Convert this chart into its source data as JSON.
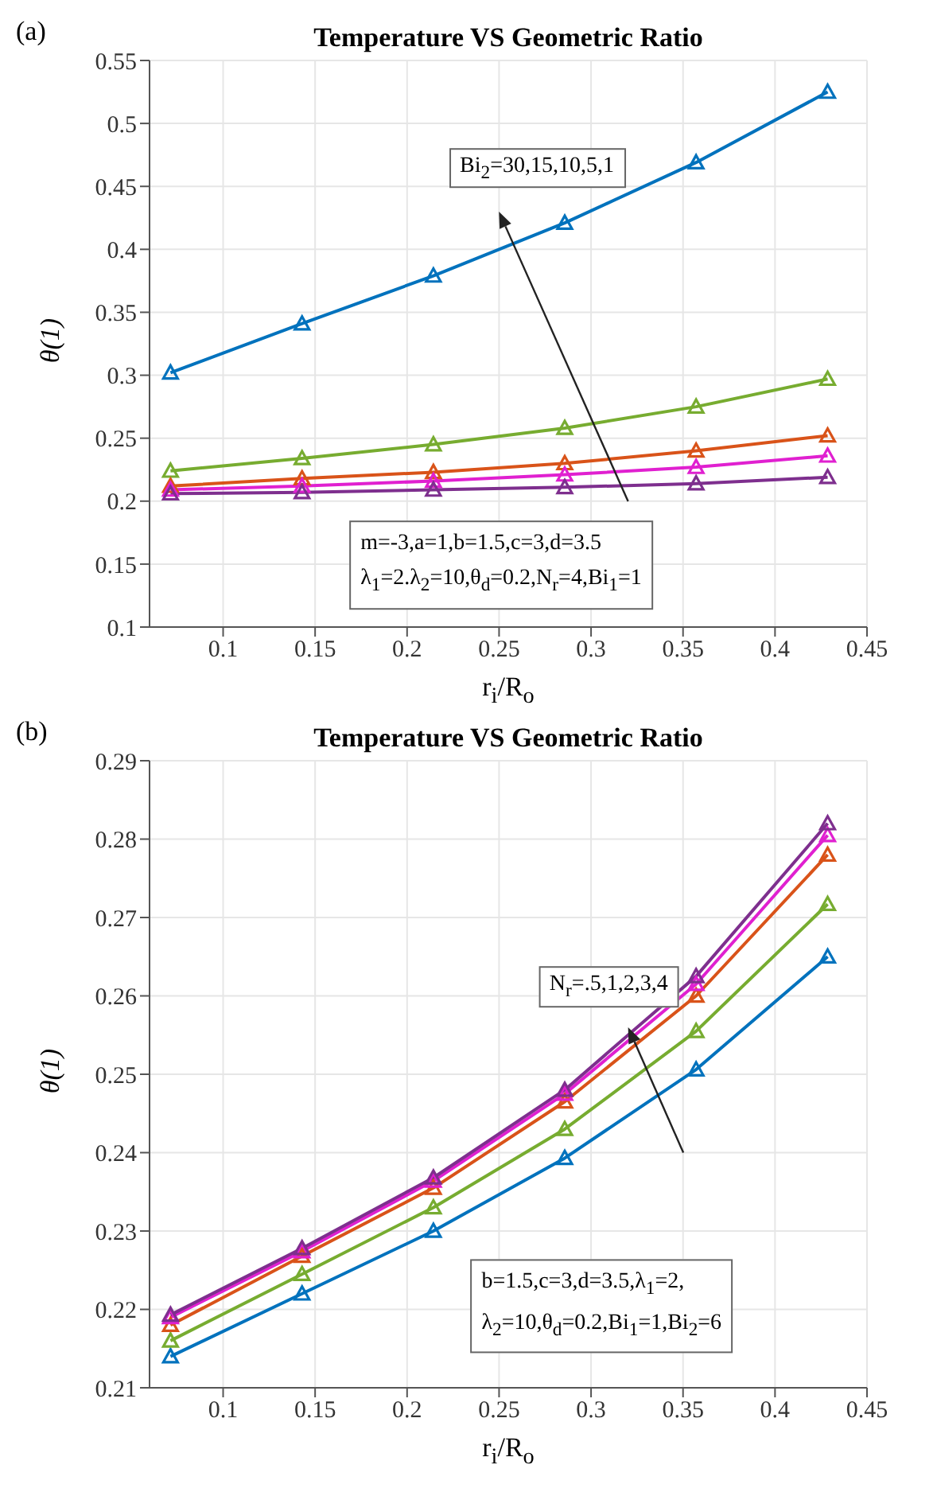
{
  "chart_data": [
    {
      "type": "line",
      "title": "Temperature VS Geometric Ratio",
      "xlabel": "r$_{i}$/R$_{o}$",
      "ylabel": "θ(1)",
      "annotations": [
        "(a)",
        "Bi$_{2}$=30,15,10,5,1",
        "m=-3,a=1,b=1.5,c=3,d=3.5",
        "λ$_{1}$=2.λ$_{2}$=10,θ$_{d}$=0.2,N$_{r}$=4,Bi$_{1}$=1"
      ],
      "x": [
        0.0714,
        0.1429,
        0.2143,
        0.2857,
        0.3571,
        0.4286
      ],
      "series": [
        {
          "color": "#0072bd",
          "values": [
            0.302,
            0.341,
            0.379,
            0.421,
            0.469,
            0.525
          ]
        },
        {
          "color": "#77ac30",
          "values": [
            0.224,
            0.234,
            0.245,
            0.258,
            0.275,
            0.297
          ]
        },
        {
          "color": "#d95319",
          "values": [
            0.212,
            0.218,
            0.223,
            0.23,
            0.24,
            0.252
          ]
        },
        {
          "color": "#e020d0",
          "values": [
            0.209,
            0.212,
            0.216,
            0.221,
            0.227,
            0.236
          ]
        },
        {
          "color": "#7e2f8e",
          "values": [
            0.206,
            0.207,
            0.209,
            0.211,
            0.214,
            0.219
          ]
        }
      ],
      "xlim": [
        0.06,
        0.45
      ],
      "xticks": [
        0.1,
        0.15,
        0.2,
        0.25,
        0.3,
        0.35,
        0.4,
        0.45
      ],
      "ylim": [
        0.1,
        0.55
      ],
      "yticks": [
        0.1,
        0.15,
        0.2,
        0.25,
        0.3,
        0.35,
        0.4,
        0.45,
        0.5,
        0.55
      ],
      "grid": true,
      "marker": "triangle",
      "line_style": "solid"
    },
    {
      "type": "line",
      "title": "Temperature VS Geometric Ratio",
      "xlabel": "r$_{i}$/R$_{o}$",
      "ylabel": "θ(1)",
      "annotations": [
        "(b)",
        "N$_{r}$=.5,1,2,3,4",
        "b=1.5,c=3,d=3.5,λ$_{1}$=2,",
        "λ$_{2}$=10,θ$_{d}$=0.2,Bi$_{1}$=1,Bi$_{2}$=6"
      ],
      "x": [
        0.0714,
        0.1429,
        0.2143,
        0.2857,
        0.3571,
        0.4286
      ],
      "series": [
        {
          "color": "#0072bd",
          "values": [
            0.214,
            0.222,
            0.23,
            0.2393,
            0.2506,
            0.265
          ]
        },
        {
          "color": "#77ac30",
          "values": [
            0.216,
            0.2245,
            0.233,
            0.243,
            0.2555,
            0.2717
          ]
        },
        {
          "color": "#d95319",
          "values": [
            0.218,
            0.2268,
            0.2355,
            0.2465,
            0.26,
            0.278
          ]
        },
        {
          "color": "#e020d0",
          "values": [
            0.219,
            0.2274,
            0.2364,
            0.2475,
            0.2615,
            0.2805
          ]
        },
        {
          "color": "#7e2f8e",
          "values": [
            0.2193,
            0.2278,
            0.2368,
            0.248,
            0.2625,
            0.282
          ]
        }
      ],
      "xlim": [
        0.06,
        0.45
      ],
      "xticks": [
        0.1,
        0.15,
        0.2,
        0.25,
        0.3,
        0.35,
        0.4,
        0.45
      ],
      "ylim": [
        0.21,
        0.29
      ],
      "yticks": [
        0.21,
        0.22,
        0.23,
        0.24,
        0.25,
        0.26,
        0.27,
        0.28,
        0.29
      ],
      "grid": true,
      "marker": "triangle",
      "line_style": "solid"
    }
  ]
}
